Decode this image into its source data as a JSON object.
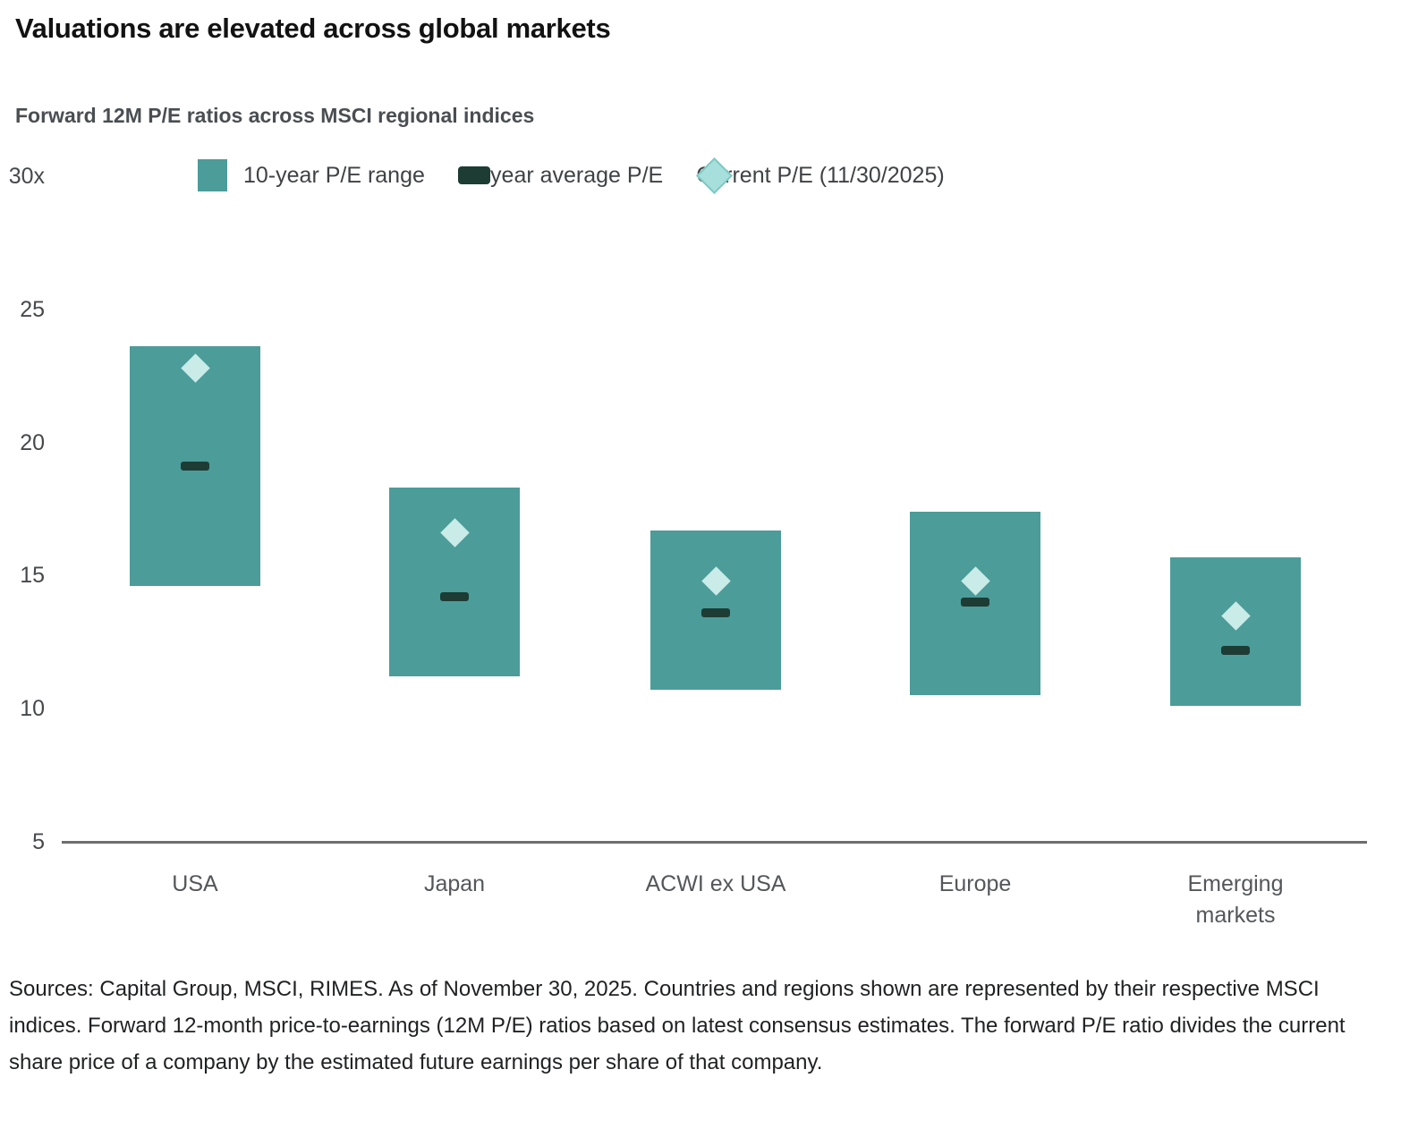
{
  "title": "Valuations are elevated across global markets",
  "subtitle": "Forward 12M P/E ratios across MSCI regional indices",
  "legend": [
    {
      "swatch": "square",
      "label": "10-year P/E range"
    },
    {
      "swatch": "dash",
      "label": "10-year average P/E"
    },
    {
      "swatch": "diamond",
      "label": "Current P/E (11/30/2025)"
    }
  ],
  "colors": {
    "range_bar": "#4C9C9A",
    "average_dash": "#1D3C34",
    "current_diamond": "#C9ECE9",
    "legend_diamond": "#A6DFDB",
    "legend_diamond_border": "#7FC9C3",
    "axis_line": "#6B6D6F"
  },
  "chart_data": {
    "type": "bar",
    "subtype": "floating-range-with-markers",
    "categories": [
      "USA",
      "Japan",
      "ACWI ex USA",
      "Europe",
      "Emerging markets"
    ],
    "series": [
      {
        "name": "10-year P/E range",
        "style": "range-bar",
        "low": [
          14.6,
          11.2,
          10.7,
          10.5,
          10.1
        ],
        "high": [
          23.6,
          18.3,
          16.7,
          17.4,
          15.7
        ]
      },
      {
        "name": "10-year average P/E",
        "style": "dash-marker",
        "values": [
          19.1,
          14.2,
          13.6,
          14.0,
          12.2
        ]
      },
      {
        "name": "Current P/E (11/30/2025)",
        "style": "diamond-marker",
        "values": [
          22.8,
          16.6,
          14.8,
          14.8,
          13.5
        ]
      }
    ],
    "title": "Forward 12M P/E ratios across MSCI regional indices",
    "xlabel": "",
    "ylabel": "",
    "ylim": [
      5,
      30
    ],
    "yticks": [
      30,
      25,
      20,
      15,
      10,
      5
    ],
    "ytick_labels": [
      "30x",
      "25",
      "20",
      "15",
      "10",
      "5"
    ],
    "grid": false,
    "legend_position": "top"
  },
  "footnote": "Sources: Capital Group, MSCI, RIMES. As of November 30, 2025. Countries and regions shown are represented by their respective MSCI indices. Forward 12-month price-to-earnings (12M P/E) ratios based on latest consensus estimates. The forward P/E ratio divides the current share price of a company by the estimated future earnings per share of that company."
}
